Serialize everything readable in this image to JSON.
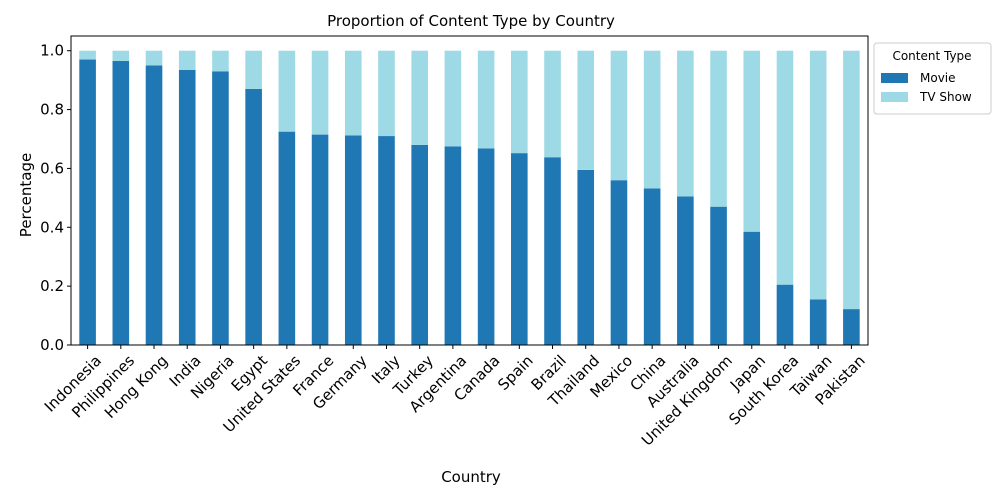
{
  "chart_data": {
    "type": "bar",
    "stacked": true,
    "title": "Proportion of Content Type by Country",
    "xlabel": "Country",
    "ylabel": "Percentage",
    "ylim": [
      0,
      1.05
    ],
    "yticks": [
      "0.0",
      "0.2",
      "0.4",
      "0.6",
      "0.8",
      "1.0"
    ],
    "legend": {
      "title": "Content Type",
      "placement": "outside-top-right"
    },
    "categories": [
      "Indonesia",
      "Philippines",
      "Hong Kong",
      "India",
      "Nigeria",
      "Egypt",
      "United States",
      "France",
      "Germany",
      "Italy",
      "Turkey",
      "Argentina",
      "Canada",
      "Spain",
      "Brazil",
      "Thailand",
      "Mexico",
      "China",
      "Australia",
      "United Kingdom",
      "Japan",
      "South Korea",
      "Taiwan",
      "Pakistan"
    ],
    "series": [
      {
        "name": "Movie",
        "color": "#1f77b4",
        "values": [
          0.97,
          0.965,
          0.95,
          0.935,
          0.93,
          0.87,
          0.725,
          0.715,
          0.712,
          0.71,
          0.68,
          0.675,
          0.668,
          0.652,
          0.638,
          0.595,
          0.56,
          0.532,
          0.505,
          0.47,
          0.385,
          0.205,
          0.155,
          0.122
        ]
      },
      {
        "name": "TV Show",
        "color": "#9edae5",
        "values": [
          0.03,
          0.035,
          0.05,
          0.065,
          0.07,
          0.13,
          0.275,
          0.285,
          0.288,
          0.29,
          0.32,
          0.325,
          0.332,
          0.348,
          0.362,
          0.405,
          0.44,
          0.468,
          0.495,
          0.53,
          0.615,
          0.795,
          0.845,
          0.878
        ]
      }
    ]
  }
}
